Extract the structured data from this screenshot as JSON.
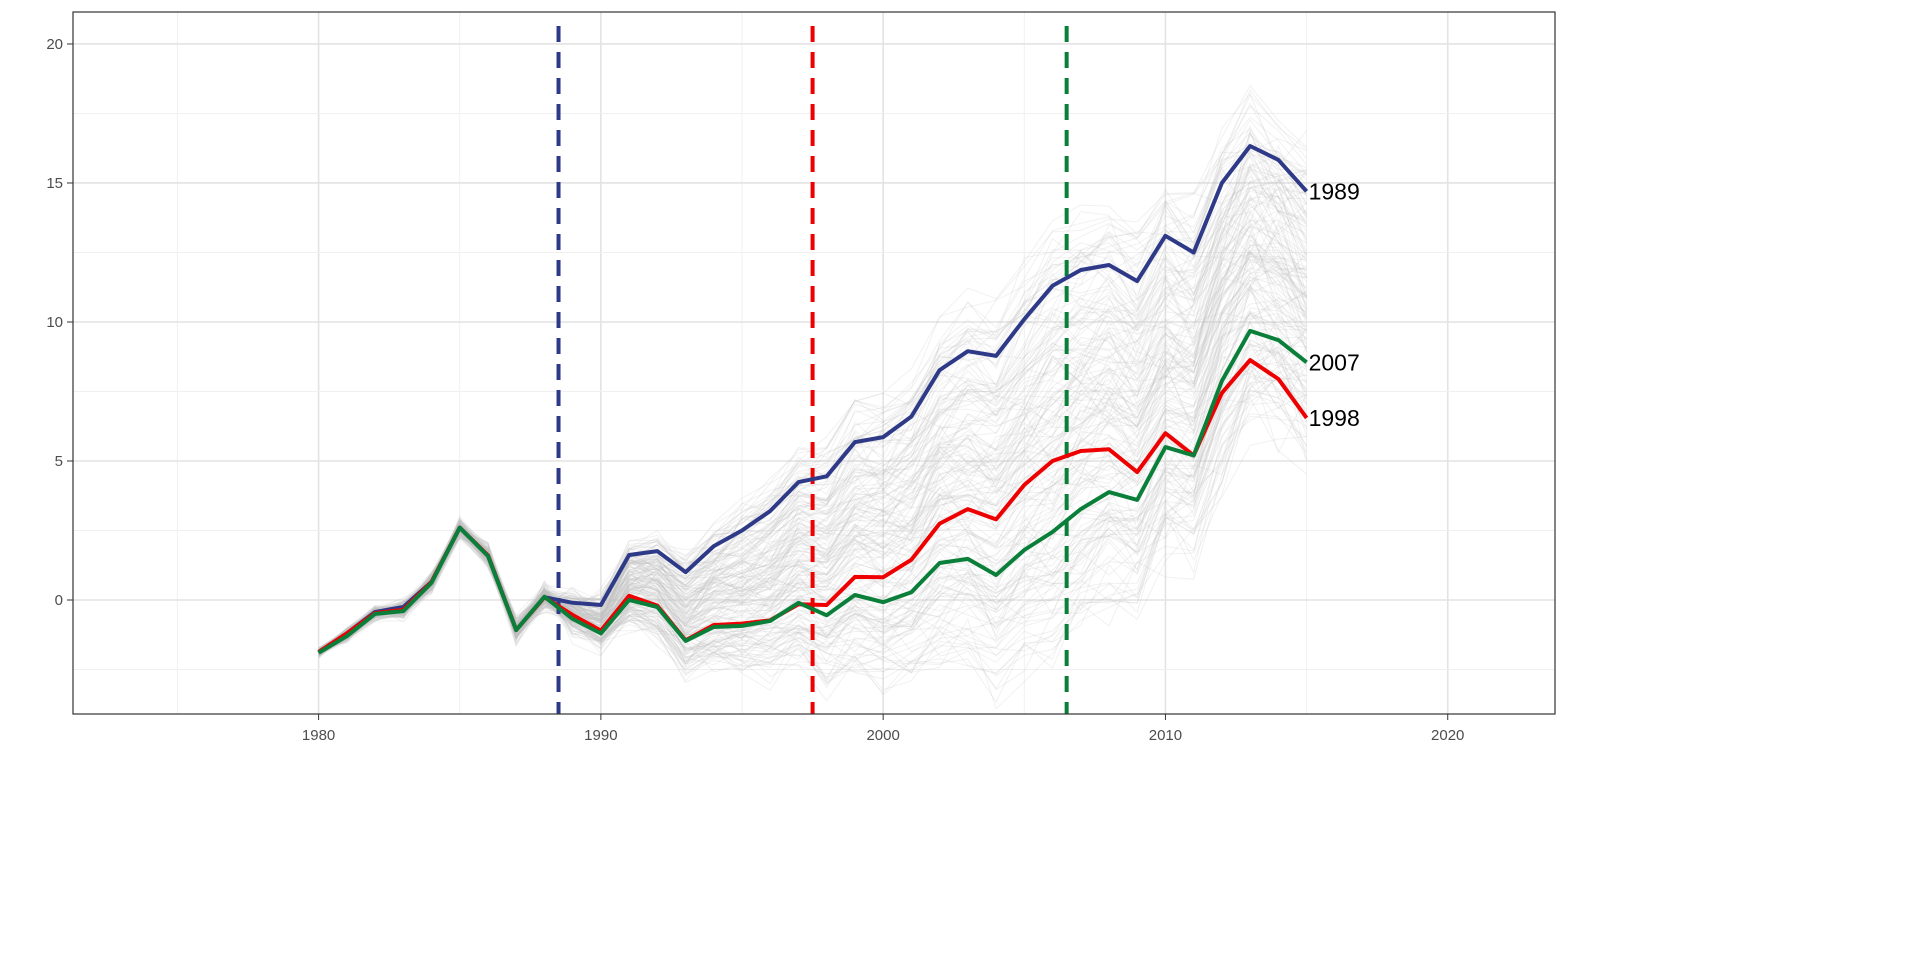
{
  "chart_data": {
    "type": "line",
    "title": "",
    "xlabel": "",
    "ylabel": "",
    "xlim": [
      1971.3,
      2023.8
    ],
    "ylim": [
      -4.1,
      21.15
    ],
    "grid": true,
    "x_ticks": [
      1980,
      1990,
      2000,
      2010,
      2020
    ],
    "y_ticks": [
      0,
      5,
      10,
      15,
      20
    ],
    "x_tick_labels": [
      "1980",
      "1990",
      "2000",
      "2010",
      "2020"
    ],
    "y_tick_labels": [
      "0",
      "5",
      "10",
      "15",
      "20"
    ],
    "x": [
      1980,
      1981,
      1982,
      1983,
      1984,
      1985,
      1986,
      1987,
      1988,
      1989,
      1990,
      1991,
      1992,
      1993,
      1994,
      1995,
      1996,
      1997,
      1998,
      1999,
      2000,
      2001,
      2002,
      2003,
      2004,
      2005,
      2006,
      2007,
      2008,
      2009,
      2010,
      2011,
      2012,
      2013,
      2014,
      2015
    ],
    "series": [
      {
        "name": "1989",
        "color": "#2e3a87",
        "values": [
          -1.87,
          -1.2,
          -0.43,
          -0.25,
          0.65,
          2.6,
          1.6,
          -1.08,
          0.1,
          -0.1,
          -0.18,
          1.62,
          1.76,
          1.0,
          1.94,
          2.5,
          3.2,
          4.24,
          4.45,
          5.68,
          5.86,
          6.6,
          8.27,
          8.95,
          8.78,
          10.1,
          11.3,
          11.87,
          12.05,
          11.47,
          13.1,
          12.5,
          15.0,
          16.33,
          15.83,
          14.7
        ]
      },
      {
        "name": "1998",
        "color": "#ee0000",
        "values": [
          -1.87,
          -1.2,
          -0.47,
          -0.35,
          0.65,
          2.6,
          1.6,
          -1.08,
          0.1,
          -0.54,
          -1.1,
          0.15,
          -0.2,
          -1.45,
          -0.9,
          -0.85,
          -0.73,
          -0.15,
          -0.18,
          0.83,
          0.82,
          1.45,
          2.75,
          3.27,
          2.9,
          4.14,
          5.0,
          5.36,
          5.42,
          4.6,
          6.0,
          5.2,
          7.45,
          8.63,
          7.95,
          6.55
        ]
      },
      {
        "name": "2007",
        "color": "#0a7f3a",
        "values": [
          -1.9,
          -1.3,
          -0.5,
          -0.4,
          0.62,
          2.6,
          1.58,
          -1.08,
          0.12,
          -0.68,
          -1.2,
          0.0,
          -0.25,
          -1.47,
          -0.97,
          -0.93,
          -0.75,
          -0.1,
          -0.55,
          0.18,
          -0.08,
          0.28,
          1.33,
          1.48,
          0.9,
          1.8,
          2.45,
          3.27,
          3.88,
          3.6,
          5.5,
          5.2,
          7.88,
          9.68,
          9.35,
          8.55
        ]
      }
    ],
    "vlines": [
      {
        "x": 1988.5,
        "color": "#2e3a87",
        "style": "dashed"
      },
      {
        "x": 1997.5,
        "color": "#ee0000",
        "style": "dashed"
      },
      {
        "x": 2006.5,
        "color": "#0a7f3a",
        "style": "dashed"
      }
    ],
    "background_ensemble": {
      "count": 180,
      "color": "#bdbdbd"
    }
  }
}
